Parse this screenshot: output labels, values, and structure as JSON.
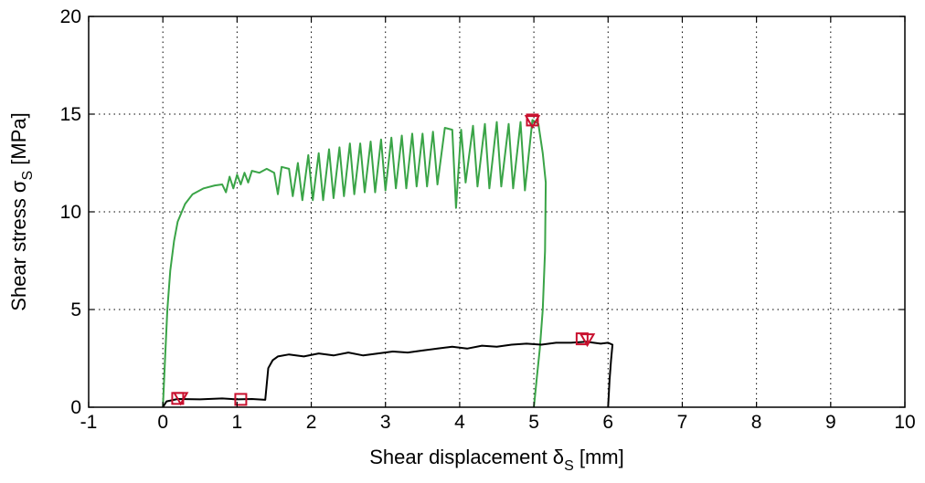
{
  "chart_data": {
    "type": "line",
    "xlabel_main": "Shear displacement δ",
    "xlabel_sub": "S",
    "xlabel_unit": " [mm]",
    "ylabel_main": "Shear stress σ",
    "ylabel_sub": "S",
    "ylabel_unit": " [MPa]",
    "xlim": [
      -1,
      10
    ],
    "ylim": [
      0,
      20
    ],
    "xticks": [
      -1,
      0,
      1,
      2,
      3,
      4,
      5,
      6,
      7,
      8,
      9,
      10
    ],
    "yticks": [
      0,
      5,
      10,
      15,
      20
    ],
    "grid": true,
    "series": [
      {
        "color": "#3aa447",
        "points": [
          [
            0.0,
            0.0
          ],
          [
            0.03,
            2.5
          ],
          [
            0.06,
            5.0
          ],
          [
            0.1,
            7.0
          ],
          [
            0.15,
            8.5
          ],
          [
            0.2,
            9.5
          ],
          [
            0.3,
            10.4
          ],
          [
            0.4,
            10.9
          ],
          [
            0.55,
            11.2
          ],
          [
            0.7,
            11.35
          ],
          [
            0.8,
            11.4
          ],
          [
            0.85,
            11.0
          ],
          [
            0.9,
            11.8
          ],
          [
            0.95,
            11.2
          ],
          [
            1.0,
            11.9
          ],
          [
            1.05,
            11.4
          ],
          [
            1.1,
            12.0
          ],
          [
            1.15,
            11.5
          ],
          [
            1.2,
            12.1
          ],
          [
            1.3,
            12.0
          ],
          [
            1.4,
            12.2
          ],
          [
            1.5,
            12.0
          ],
          [
            1.55,
            10.9
          ],
          [
            1.6,
            12.3
          ],
          [
            1.7,
            12.2
          ],
          [
            1.75,
            10.8
          ],
          [
            1.82,
            12.5
          ],
          [
            1.88,
            10.6
          ],
          [
            1.96,
            12.9
          ],
          [
            2.02,
            10.6
          ],
          [
            2.1,
            13.0
          ],
          [
            2.16,
            10.6
          ],
          [
            2.24,
            13.2
          ],
          [
            2.3,
            10.7
          ],
          [
            2.38,
            13.3
          ],
          [
            2.44,
            10.8
          ],
          [
            2.52,
            13.5
          ],
          [
            2.58,
            10.9
          ],
          [
            2.66,
            13.5
          ],
          [
            2.72,
            11.0
          ],
          [
            2.8,
            13.6
          ],
          [
            2.86,
            11.0
          ],
          [
            2.94,
            13.7
          ],
          [
            3.0,
            11.1
          ],
          [
            3.08,
            13.8
          ],
          [
            3.14,
            11.2
          ],
          [
            3.22,
            13.9
          ],
          [
            3.28,
            11.2
          ],
          [
            3.36,
            14.0
          ],
          [
            3.42,
            11.3
          ],
          [
            3.5,
            14.0
          ],
          [
            3.56,
            11.3
          ],
          [
            3.64,
            14.1
          ],
          [
            3.7,
            11.4
          ],
          [
            3.8,
            14.3
          ],
          [
            3.9,
            14.2
          ],
          [
            3.95,
            10.2
          ],
          [
            4.02,
            14.2
          ],
          [
            4.08,
            11.5
          ],
          [
            4.18,
            14.4
          ],
          [
            4.24,
            11.3
          ],
          [
            4.34,
            14.5
          ],
          [
            4.4,
            11.2
          ],
          [
            4.5,
            14.6
          ],
          [
            4.56,
            11.3
          ],
          [
            4.66,
            14.5
          ],
          [
            4.72,
            11.2
          ],
          [
            4.82,
            14.6
          ],
          [
            4.88,
            11.1
          ],
          [
            4.98,
            14.7
          ],
          [
            5.06,
            14.5
          ],
          [
            5.12,
            13.0
          ],
          [
            5.16,
            11.5
          ],
          [
            5.15,
            8.0
          ],
          [
            5.12,
            5.0
          ],
          [
            5.08,
            3.0
          ],
          [
            5.04,
            1.5
          ],
          [
            5.0,
            0.0
          ]
        ]
      },
      {
        "color": "#000000",
        "points": [
          [
            0.0,
            0.0
          ],
          [
            0.05,
            0.3
          ],
          [
            0.2,
            0.42
          ],
          [
            0.5,
            0.4
          ],
          [
            0.8,
            0.45
          ],
          [
            1.0,
            0.4
          ],
          [
            1.2,
            0.42
          ],
          [
            1.38,
            0.38
          ],
          [
            1.42,
            2.0
          ],
          [
            1.48,
            2.4
          ],
          [
            1.55,
            2.6
          ],
          [
            1.7,
            2.7
          ],
          [
            1.9,
            2.6
          ],
          [
            2.1,
            2.75
          ],
          [
            2.3,
            2.65
          ],
          [
            2.5,
            2.8
          ],
          [
            2.7,
            2.65
          ],
          [
            2.9,
            2.75
          ],
          [
            3.1,
            2.85
          ],
          [
            3.3,
            2.8
          ],
          [
            3.5,
            2.9
          ],
          [
            3.7,
            3.0
          ],
          [
            3.9,
            3.1
          ],
          [
            4.1,
            3.0
          ],
          [
            4.3,
            3.15
          ],
          [
            4.5,
            3.1
          ],
          [
            4.7,
            3.2
          ],
          [
            4.9,
            3.25
          ],
          [
            5.1,
            3.2
          ],
          [
            5.3,
            3.3
          ],
          [
            5.5,
            3.3
          ],
          [
            5.7,
            3.35
          ],
          [
            5.9,
            3.25
          ],
          [
            6.0,
            3.3
          ],
          [
            6.06,
            3.2
          ],
          [
            6.04,
            2.4
          ],
          [
            6.02,
            1.4
          ],
          [
            6.0,
            0.0
          ]
        ]
      }
    ],
    "markers": [
      {
        "symbol": "square",
        "x": 0.2,
        "y": 0.45
      },
      {
        "symbol": "triangle-down",
        "x": 0.24,
        "y": 0.45
      },
      {
        "symbol": "square",
        "x": 1.05,
        "y": 0.4
      },
      {
        "symbol": "square",
        "x": 4.98,
        "y": 14.7
      },
      {
        "symbol": "triangle-down",
        "x": 4.98,
        "y": 14.62
      },
      {
        "symbol": "square",
        "x": 5.65,
        "y": 3.5
      },
      {
        "symbol": "triangle-down",
        "x": 5.72,
        "y": 3.45
      }
    ],
    "marker_color": "#c8102e"
  }
}
